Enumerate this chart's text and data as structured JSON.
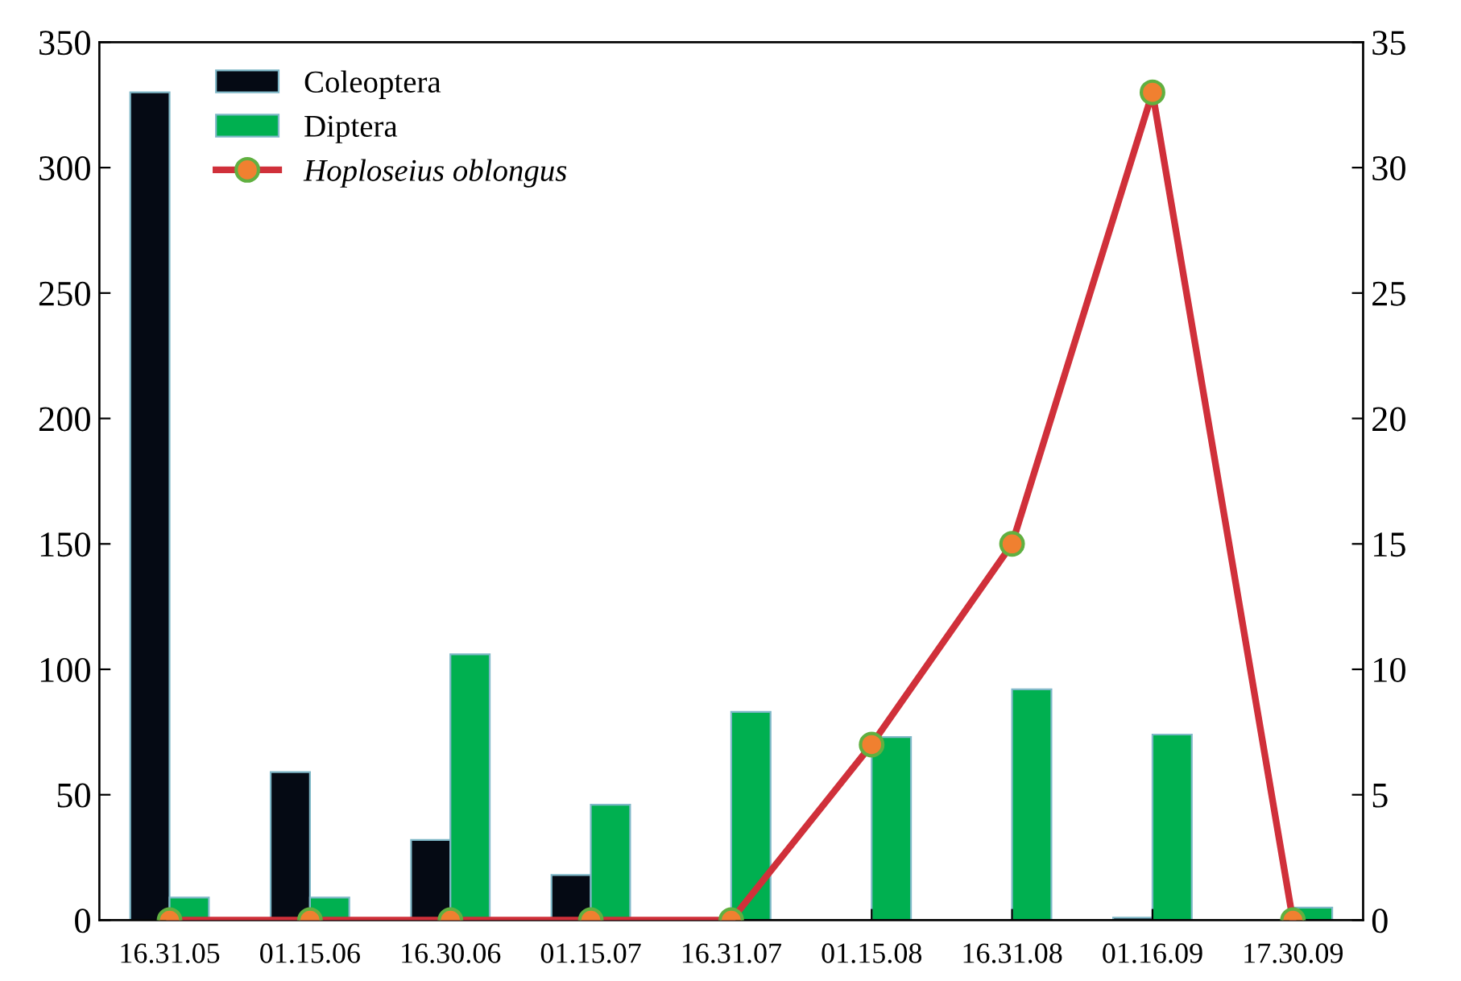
{
  "chart_data": {
    "type": "bar",
    "categories": [
      "16.31.05",
      "01.15.06",
      "16.30.06",
      "01.15.07",
      "16.31.07",
      "01.15.08",
      "16.31.08",
      "01.16.09",
      "17.30.09"
    ],
    "series": [
      {
        "name": "Coleoptera",
        "color": "#050a14",
        "values": [
          330,
          59,
          32,
          18,
          null,
          null,
          null,
          1,
          null
        ]
      },
      {
        "name": "Diptera",
        "color": "#00b050",
        "values": [
          9,
          9,
          106,
          46,
          83,
          73,
          92,
          74,
          5
        ]
      },
      {
        "name": "Hoploseius oblongus",
        "type": "line",
        "axis": "y2",
        "color": "#d0303a",
        "marker": "circle",
        "values": [
          0,
          0,
          0,
          0,
          0,
          7,
          15,
          33,
          0
        ]
      }
    ],
    "ylim": [
      0,
      350
    ],
    "yticks": [
      0,
      50,
      100,
      150,
      200,
      250,
      300,
      350
    ],
    "y2lim": [
      0,
      35
    ],
    "y2ticks": [
      0,
      5,
      10,
      15,
      20,
      25,
      30,
      35
    ],
    "legend": "top left",
    "grid": false
  }
}
